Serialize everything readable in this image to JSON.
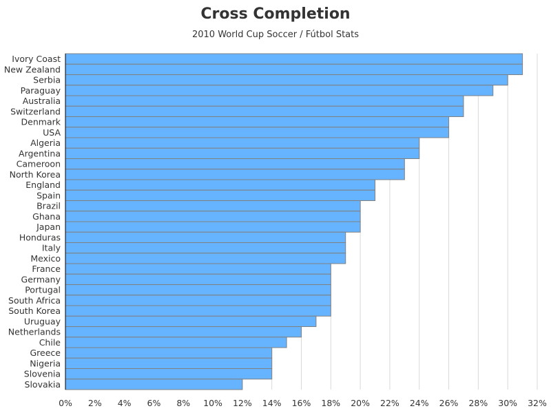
{
  "chart_data": {
    "type": "bar",
    "orientation": "horizontal",
    "title": "Cross Completion",
    "subtitle": "2010 World Cup Soccer / Fútbol Stats",
    "xlabel": "",
    "ylabel": "",
    "xlim": [
      0,
      32
    ],
    "tick_step": 2,
    "tick_suffix": "%",
    "grid": true,
    "bar_color": "#66b3ff",
    "categories": [
      "Ivory Coast",
      "New Zealand",
      "Serbia",
      "Paraguay",
      "Australia",
      "Switzerland",
      "Denmark",
      "USA",
      "Algeria",
      "Argentina",
      "Cameroon",
      "North Korea",
      "England",
      "Spain",
      "Brazil",
      "Ghana",
      "Japan",
      "Honduras",
      "Italy",
      "Mexico",
      "France",
      "Germany",
      "Portugal",
      "South Africa",
      "South Korea",
      "Uruguay",
      "Netherlands",
      "Chile",
      "Greece",
      "Nigeria",
      "Slovenia",
      "Slovakia"
    ],
    "values": [
      31,
      31,
      30,
      29,
      27,
      27,
      26,
      26,
      24,
      24,
      23,
      23,
      21,
      21,
      20,
      20,
      20,
      19,
      19,
      19,
      18,
      18,
      18,
      18,
      18,
      17,
      16,
      15,
      14,
      14,
      14,
      12
    ]
  }
}
